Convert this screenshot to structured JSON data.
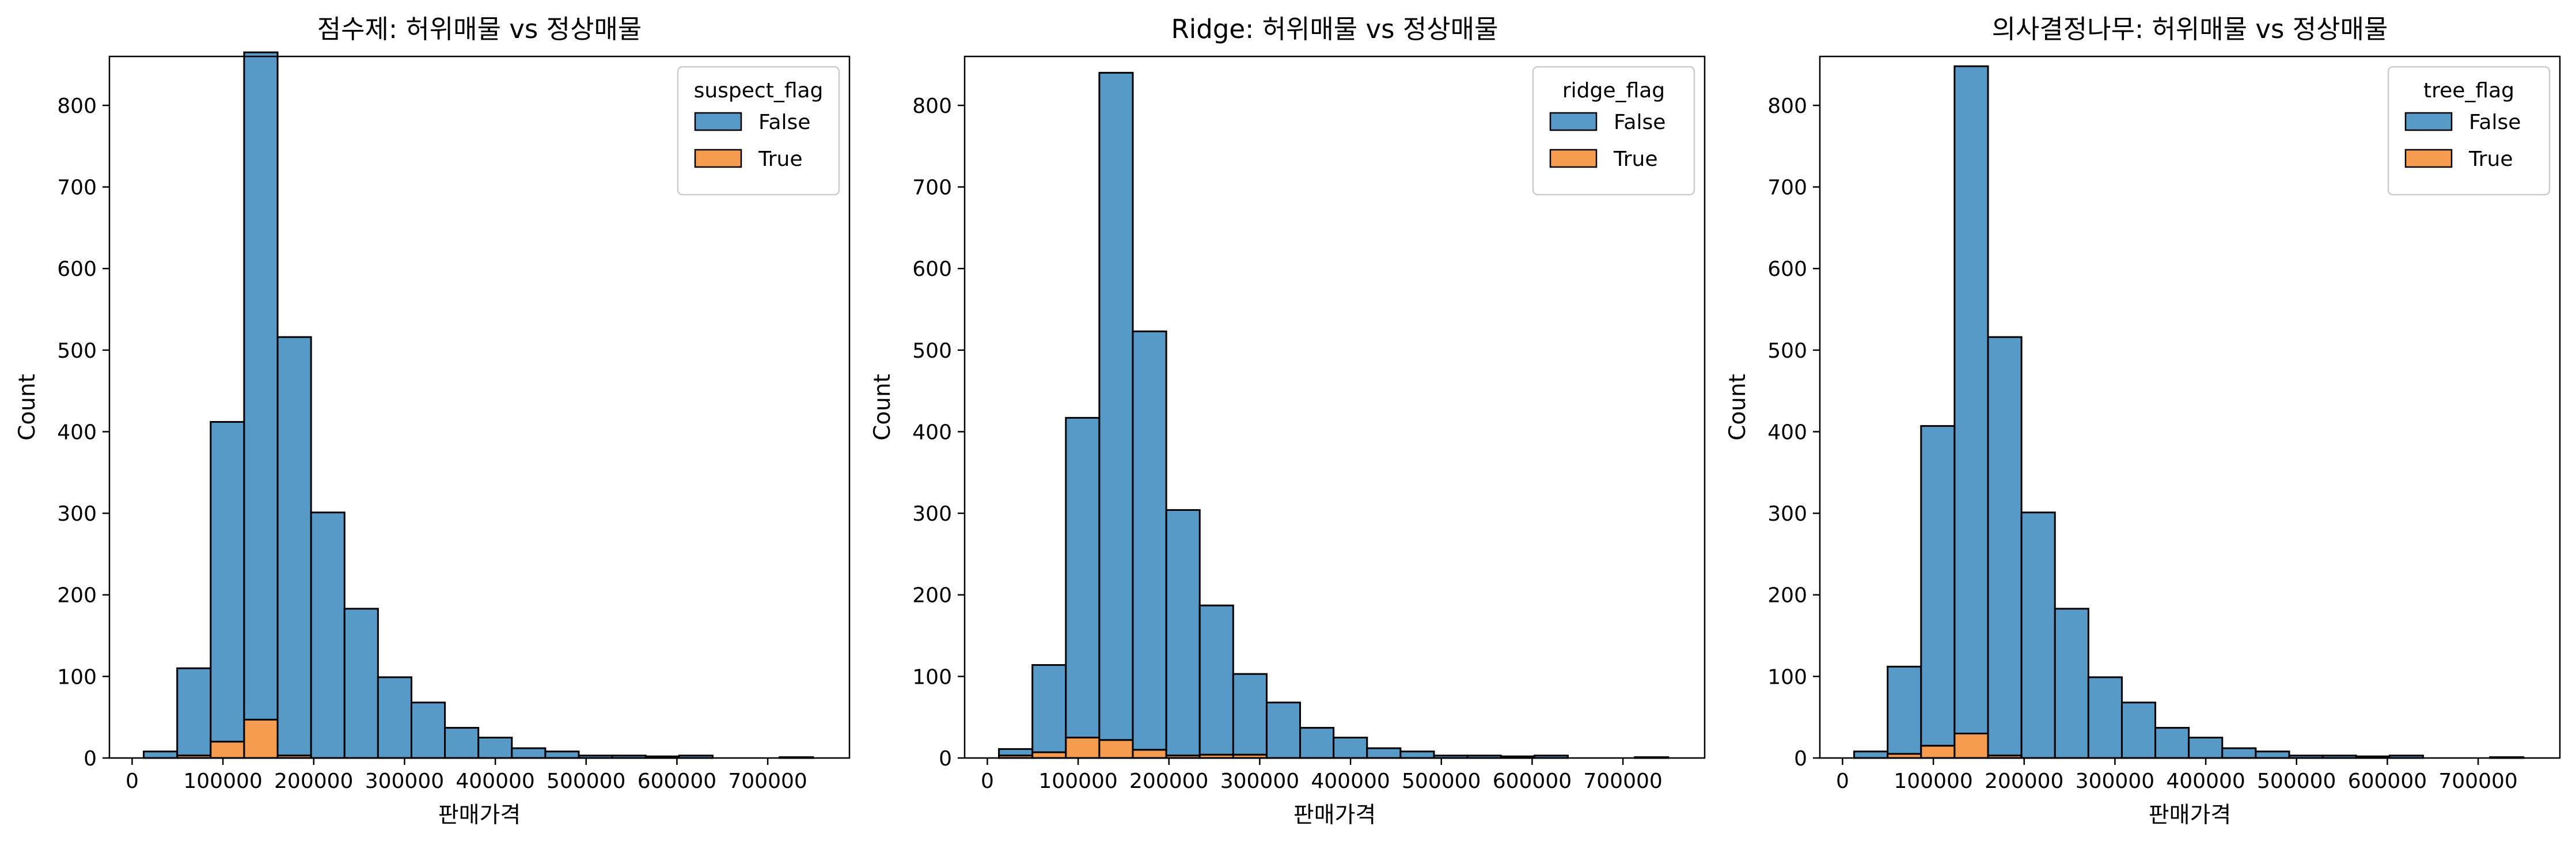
{
  "colors": {
    "false_fill": "#5799c7",
    "true_fill": "#f69c50",
    "edge": "#000000"
  },
  "chart_data": [
    {
      "type": "bar",
      "stacked": true,
      "title": "점수제: 허위매물 vs 정상매물",
      "xlabel": "판매가격",
      "ylabel": "Count",
      "xlim": [
        -25000,
        790000
      ],
      "ylim": [
        0,
        860
      ],
      "x_ticks": [
        0,
        100000,
        200000,
        300000,
        400000,
        500000,
        600000,
        700000
      ],
      "y_ticks": [
        0,
        100,
        200,
        300,
        400,
        500,
        600,
        700,
        800
      ],
      "bin_edges": [
        12789,
        49644,
        86499,
        123354,
        160209,
        197064,
        233919,
        270774,
        307629,
        344484,
        381339,
        418194,
        455049,
        491904,
        528759,
        565614,
        602469,
        639324,
        676179,
        713034,
        749889
      ],
      "legend": {
        "title": "suspect_flag",
        "location": "top-right",
        "entries": [
          "False",
          "True"
        ]
      },
      "series": [
        {
          "name": "False",
          "values": [
            8,
            107,
            392,
            818,
            513,
            301,
            183,
            99,
            68,
            37,
            25,
            12,
            8,
            3,
            3,
            2,
            3,
            0,
            0,
            1
          ]
        },
        {
          "name": "True",
          "values": [
            0,
            3,
            20,
            47,
            3,
            0,
            0,
            0,
            0,
            0,
            0,
            0,
            0,
            0,
            0,
            0,
            0,
            0,
            0,
            0
          ]
        }
      ]
    },
    {
      "type": "bar",
      "stacked": true,
      "title": "Ridge: 허위매물 vs 정상매물",
      "xlabel": "판매가격",
      "ylabel": "Count",
      "xlim": [
        -25000,
        790000
      ],
      "ylim": [
        0,
        860
      ],
      "x_ticks": [
        0,
        100000,
        200000,
        300000,
        400000,
        500000,
        600000,
        700000
      ],
      "y_ticks": [
        0,
        100,
        200,
        300,
        400,
        500,
        600,
        700,
        800
      ],
      "bin_edges": [
        12789,
        49644,
        86499,
        123354,
        160209,
        197064,
        233919,
        270774,
        307629,
        344484,
        381339,
        418194,
        455049,
        491904,
        528759,
        565614,
        602469,
        639324,
        676179,
        713034,
        749889
      ],
      "legend": {
        "title": "ridge_flag",
        "location": "top-right",
        "entries": [
          "False",
          "True"
        ]
      },
      "series": [
        {
          "name": "False",
          "values": [
            8,
            107,
            392,
            818,
            513,
            301,
            183,
            99,
            68,
            37,
            25,
            12,
            8,
            3,
            3,
            2,
            3,
            0,
            0,
            1
          ]
        },
        {
          "name": "True",
          "values": [
            3,
            7,
            25,
            22,
            10,
            3,
            4,
            4,
            0,
            0,
            0,
            0,
            0,
            0,
            0,
            0,
            0,
            0,
            0,
            0
          ]
        }
      ]
    },
    {
      "type": "bar",
      "stacked": true,
      "title": "의사결정나무: 허위매물 vs 정상매물",
      "xlabel": "판매가격",
      "ylabel": "Count",
      "xlim": [
        -25000,
        790000
      ],
      "ylim": [
        0,
        860
      ],
      "x_ticks": [
        0,
        100000,
        200000,
        300000,
        400000,
        500000,
        600000,
        700000
      ],
      "y_ticks": [
        0,
        100,
        200,
        300,
        400,
        500,
        600,
        700,
        800
      ],
      "bin_edges": [
        12789,
        49644,
        86499,
        123354,
        160209,
        197064,
        233919,
        270774,
        307629,
        344484,
        381339,
        418194,
        455049,
        491904,
        528759,
        565614,
        602469,
        639324,
        676179,
        713034,
        749889
      ],
      "legend": {
        "title": "tree_flag",
        "location": "top-right",
        "entries": [
          "False",
          "True"
        ]
      },
      "series": [
        {
          "name": "False",
          "values": [
            8,
            107,
            392,
            818,
            513,
            301,
            183,
            99,
            68,
            37,
            25,
            12,
            8,
            3,
            3,
            2,
            3,
            0,
            0,
            1
          ]
        },
        {
          "name": "True",
          "values": [
            0,
            5,
            15,
            30,
            3,
            0,
            0,
            0,
            0,
            0,
            0,
            0,
            0,
            0,
            0,
            0,
            0,
            0,
            0,
            0
          ]
        }
      ]
    }
  ]
}
